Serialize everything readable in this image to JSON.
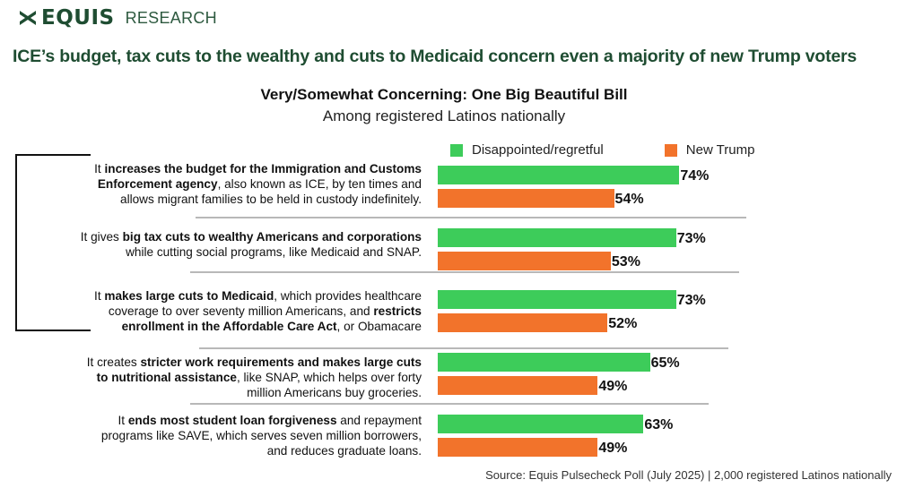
{
  "brand": {
    "logo_icon": "equis-x-logo-icon",
    "name": "EQUIS",
    "sub": "RESEARCH",
    "color": "#1f4d32"
  },
  "headline": "ICE’s budget, tax cuts to the wealthy and cuts to Medicaid concern even a majority of new Trump voters",
  "chart_data": {
    "type": "bar",
    "orientation": "horizontal",
    "title": "Very/Somewhat Concerning: One Big Beautiful Bill",
    "subtitle": "Among registered Latinos nationally",
    "xlabel": "",
    "ylabel": "",
    "value_format": "percent",
    "xlim": [
      0,
      100
    ],
    "grid": false,
    "legend_position": "top-right",
    "categories": [
      {
        "segments": [
          {
            "text": "It ",
            "bold": false
          },
          {
            "text": "increases the budget for the Immigration and Customs Enforcement agency",
            "bold": true
          },
          {
            "text": ", also known as ICE, by ten times and allows migrant families to be held in custody indefinitely.",
            "bold": false
          }
        ],
        "lines": [
          [
            {
              "text": "It ",
              "bold": false
            },
            {
              "text": "increases the budget for the Immigration and Customs",
              "bold": true
            }
          ],
          [
            {
              "text": "Enforcement agency",
              "bold": true
            },
            {
              "text": ", also known as ICE, by ten times and",
              "bold": false
            }
          ],
          [
            {
              "text": "allows migrant families to be held in custody indefinitely.",
              "bold": false
            }
          ]
        ]
      },
      {
        "segments": [
          {
            "text": "It gives ",
            "bold": false
          },
          {
            "text": "big tax cuts to wealthy Americans and corporations",
            "bold": true
          },
          {
            "text": " while cutting social programs, like Medicaid and SNAP.",
            "bold": false
          }
        ],
        "lines": [
          [
            {
              "text": "It gives ",
              "bold": false
            },
            {
              "text": "big tax cuts to wealthy Americans and corporations",
              "bold": true
            }
          ],
          [
            {
              "text": "while cutting social programs, like Medicaid and SNAP.",
              "bold": false
            }
          ]
        ]
      },
      {
        "segments": [
          {
            "text": "It ",
            "bold": false
          },
          {
            "text": "makes large cuts to Medicaid",
            "bold": true
          },
          {
            "text": ", which provides healthcare coverage to over seventy million Americans, and ",
            "bold": false
          },
          {
            "text": "restricts enrollment in the Affordable Care Act",
            "bold": true
          },
          {
            "text": ", or Obamacare",
            "bold": false
          }
        ],
        "lines": [
          [
            {
              "text": "It ",
              "bold": false
            },
            {
              "text": "makes large cuts to Medicaid",
              "bold": true
            },
            {
              "text": ", which provides healthcare",
              "bold": false
            }
          ],
          [
            {
              "text": "coverage to over seventy million Americans, and ",
              "bold": false
            },
            {
              "text": "restricts",
              "bold": true
            }
          ],
          [
            {
              "text": "enrollment in the Affordable Care Act",
              "bold": true
            },
            {
              "text": ", or Obamacare",
              "bold": false
            }
          ]
        ]
      },
      {
        "segments": [
          {
            "text": "It creates ",
            "bold": false
          },
          {
            "text": "stricter work requirements and makes large cuts to nutritional assistance",
            "bold": true
          },
          {
            "text": ", like SNAP, which helps over forty million Americans buy groceries.",
            "bold": false
          }
        ],
        "lines": [
          [
            {
              "text": "It creates ",
              "bold": false
            },
            {
              "text": "stricter work requirements and makes large cuts",
              "bold": true
            }
          ],
          [
            {
              "text": "to nutritional assistance",
              "bold": true
            },
            {
              "text": ", like SNAP, which helps over forty",
              "bold": false
            }
          ],
          [
            {
              "text": "million Americans buy groceries.",
              "bold": false
            }
          ]
        ]
      },
      {
        "segments": [
          {
            "text": "It ",
            "bold": false
          },
          {
            "text": "ends most student loan forgiveness",
            "bold": true
          },
          {
            "text": " and repayment programs like SAVE, which serves seven million borrowers, and reduces graduate loans.",
            "bold": false
          }
        ],
        "lines": [
          [
            {
              "text": "It ",
              "bold": false
            },
            {
              "text": "ends most student loan forgiveness",
              "bold": true
            },
            {
              "text": " and repayment",
              "bold": false
            }
          ],
          [
            {
              "text": "programs like SAVE, which serves seven million borrowers,",
              "bold": false
            }
          ],
          [
            {
              "text": "and reduces graduate loans.",
              "bold": false
            }
          ]
        ]
      }
    ],
    "bracket_groups": [
      [
        0,
        2
      ]
    ],
    "series": [
      {
        "name": "Disappointed/regretful",
        "color": "#3dcc5a",
        "values": [
          74,
          73,
          73,
          65,
          63
        ]
      },
      {
        "name": "New Trump",
        "color": "#f2732b",
        "values": [
          54,
          53,
          52,
          49,
          49
        ]
      }
    ],
    "data_labels": [
      [
        "74%",
        "73%",
        "73%",
        "65%",
        "63%"
      ],
      [
        "54%",
        "53%",
        "52%",
        "49%",
        "49%"
      ]
    ]
  },
  "source": "Source: Equis Pulsecheck Poll (July 2025) | 2,000 registered Latinos nationally"
}
